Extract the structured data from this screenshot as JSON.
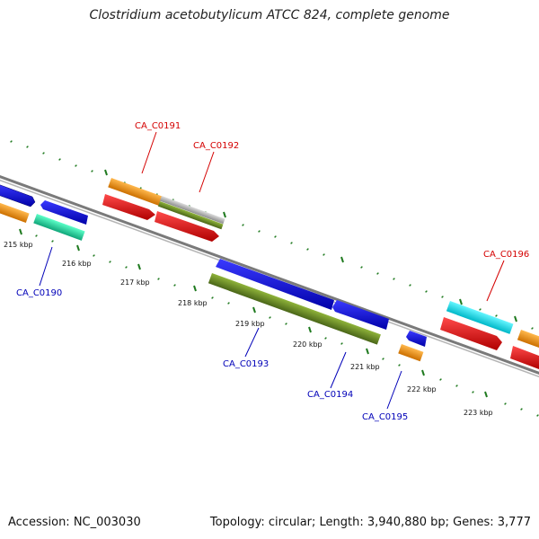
{
  "title": "Clostridium acetobutylicum ATCC 824, complete genome",
  "footer": {
    "accession": "Accession: NC_003030",
    "topology": "Topology: circular; Length: 3,940,880 bp; Genes: 3,777"
  },
  "ticks": [
    "215 kbp",
    "216 kbp",
    "217 kbp",
    "218 kbp",
    "219 kbp",
    "220 kbp",
    "221 kbp",
    "222 kbp",
    "223 kbp"
  ],
  "genes_forward_labeled": [
    "CA_C0191",
    "CA_C0192",
    "CA_C0196"
  ],
  "genes_reverse_labeled": [
    "CA_C0190",
    "CA_C0193",
    "CA_C0194",
    "CA_C0195"
  ],
  "colors": {
    "backbone": "#808080",
    "tick": "#1f7a1f",
    "forward_label": "#d40000",
    "reverse_label": "#0000b8",
    "orange": "#ff9900",
    "blue": "#0000ee",
    "red": "#ee0000",
    "olive": "#6b8e23",
    "teal": "#22ddaa",
    "cyan": "#00eeff",
    "gray": "#b0b0b0"
  }
}
